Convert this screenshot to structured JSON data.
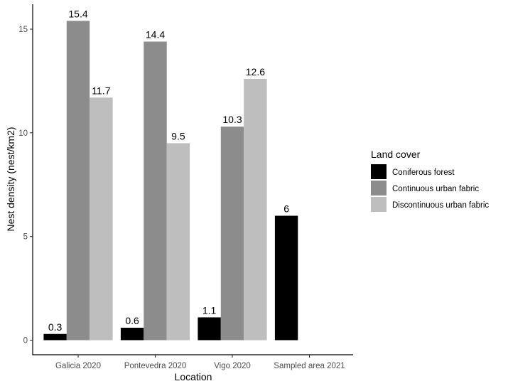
{
  "chart_data": {
    "type": "bar",
    "title": "",
    "xlabel": "Location",
    "ylabel": "Nest density (nest/km2)",
    "ylim": [
      0,
      16
    ],
    "yticks": [
      0,
      5,
      10,
      15
    ],
    "grid": false,
    "legend_title": "Land cover",
    "legend_position": "right",
    "categories": [
      "Galicia 2020",
      "Pontevedra 2020",
      "Vigo 2020",
      "Sampled area 2021"
    ],
    "series": [
      {
        "name": "Coniferous forest",
        "color": "#000000",
        "values": [
          0.3,
          0.6,
          1.1,
          6
        ]
      },
      {
        "name": "Continuous urban fabric",
        "color": "#8c8c8c",
        "values": [
          15.4,
          14.4,
          10.3,
          null
        ]
      },
      {
        "name": "Discontinuous urban fabric",
        "color": "#bebebe",
        "values": [
          11.7,
          9.5,
          12.6,
          null
        ]
      }
    ],
    "data_labels": [
      [
        "0.3",
        "0.6",
        "1.1",
        "6"
      ],
      [
        "15.4",
        "14.4",
        "10.3",
        null
      ],
      [
        "11.7",
        "9.5",
        "12.6",
        null
      ]
    ]
  }
}
